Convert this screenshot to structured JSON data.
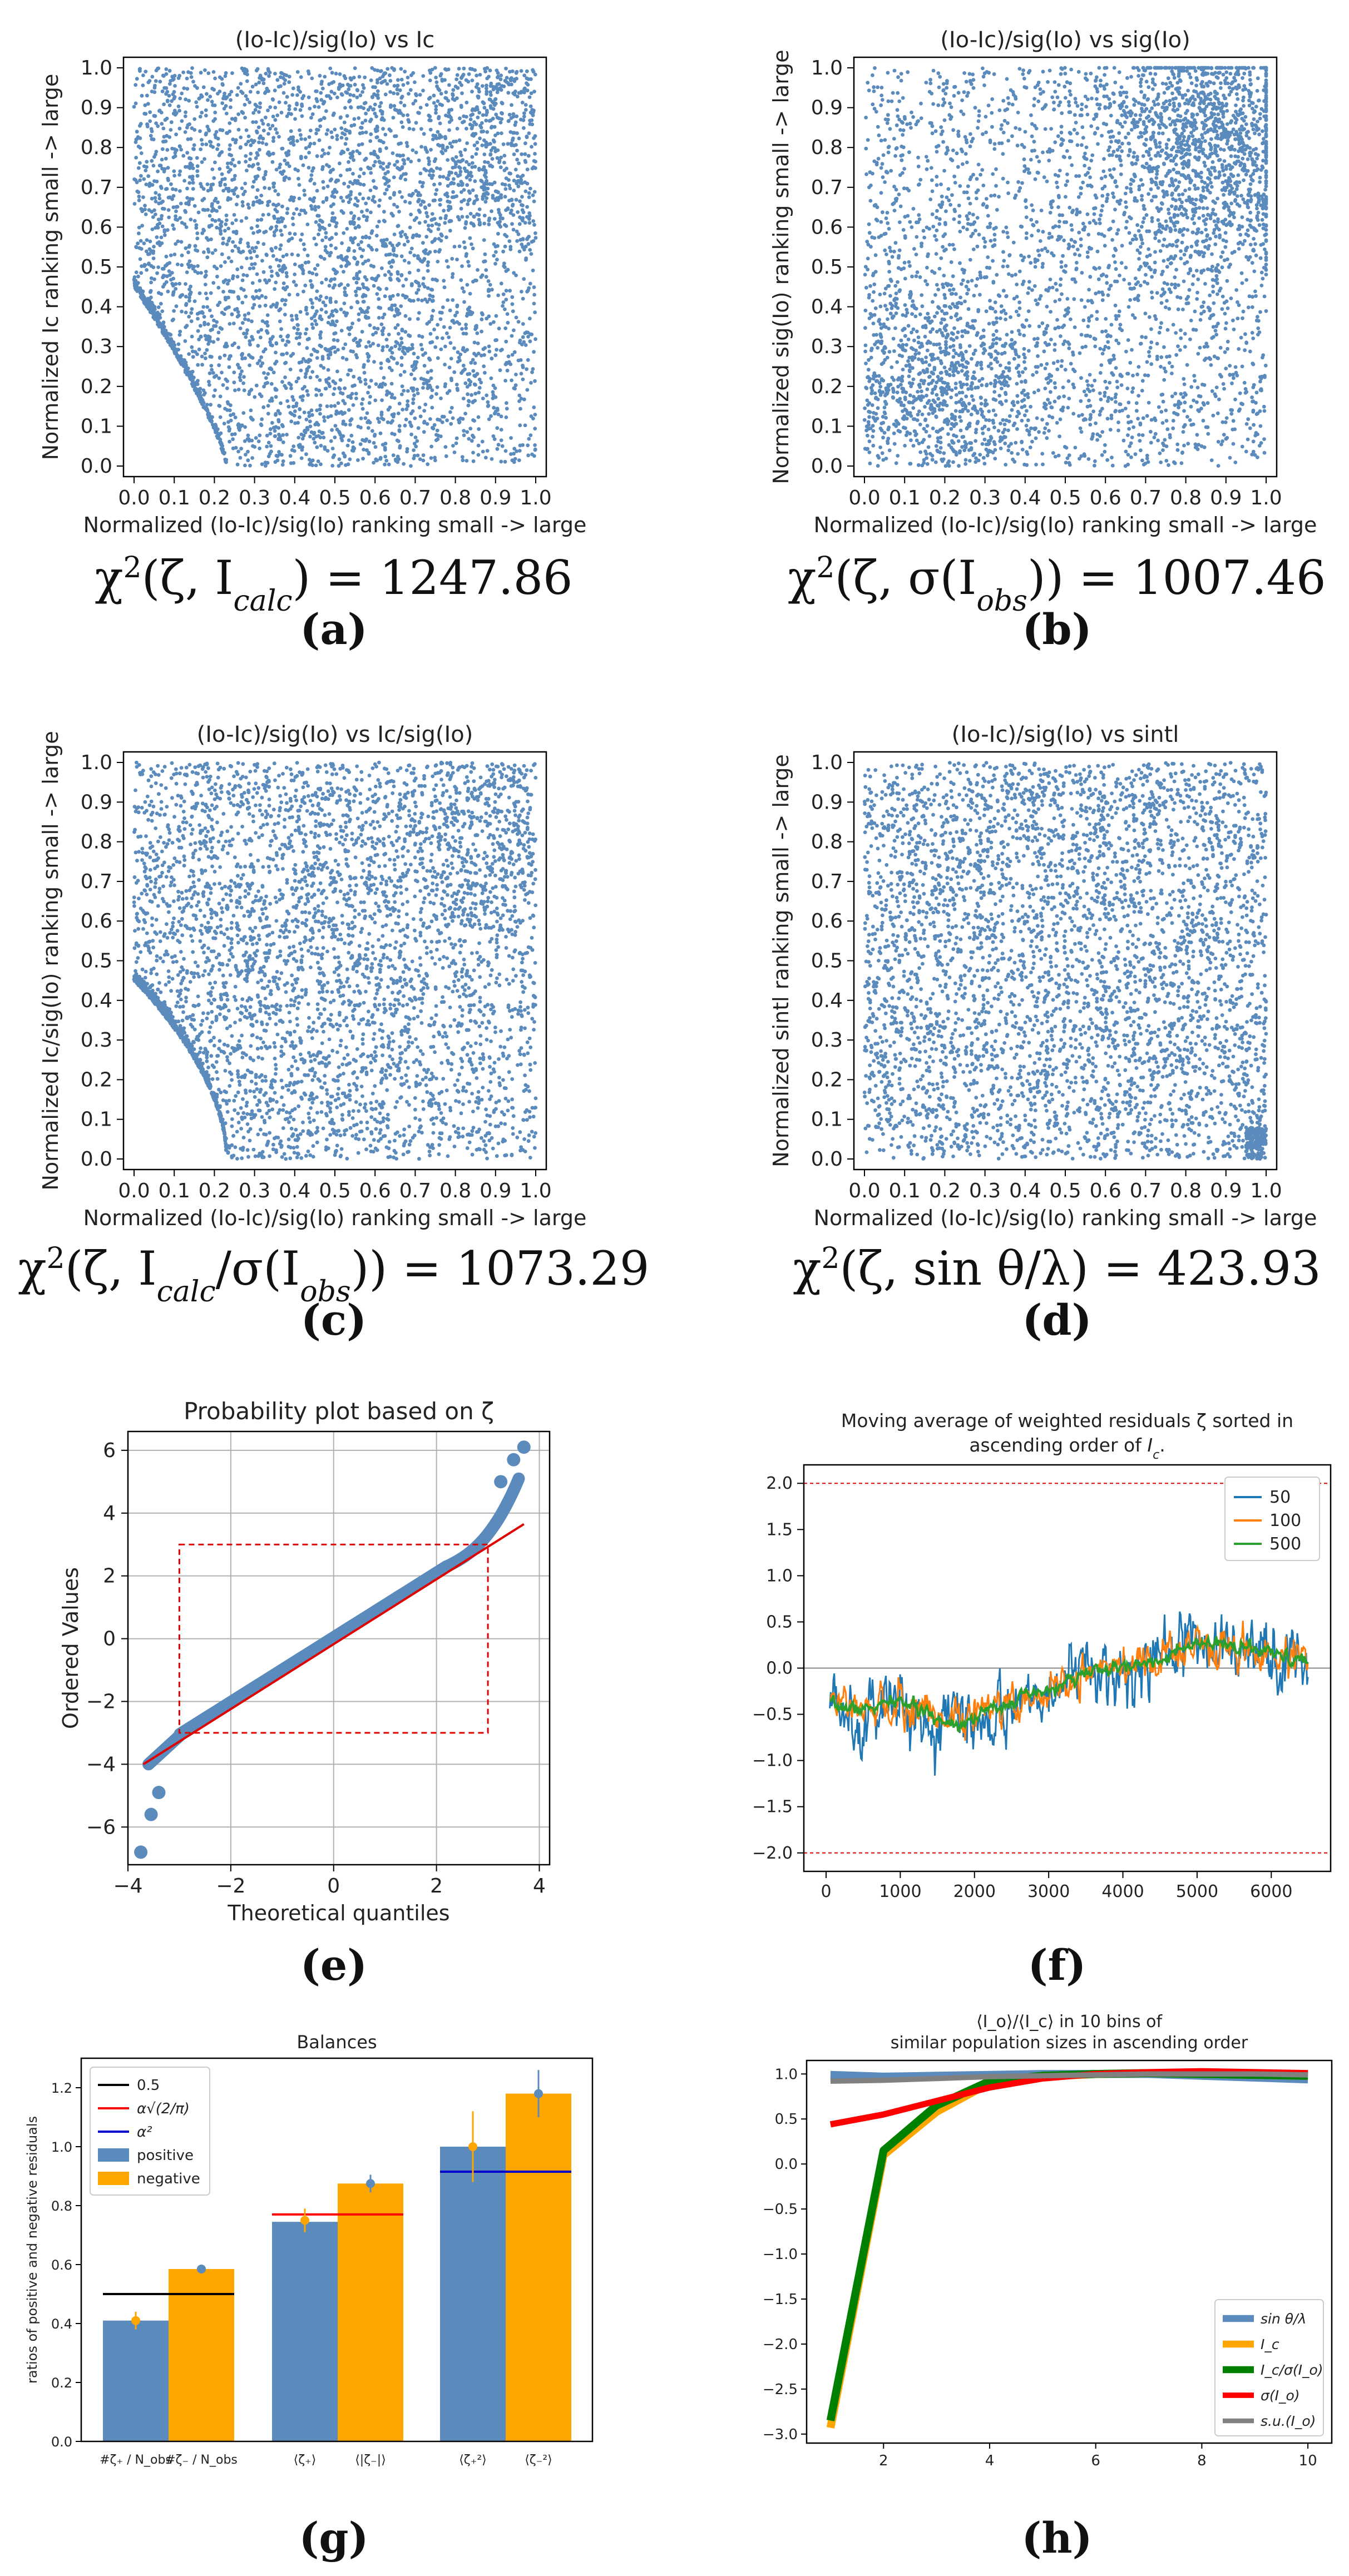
{
  "chart_data": [
    {
      "id": "a",
      "type": "scatter",
      "title": "(Io-Ic)/sig(Io) vs Ic",
      "xlabel": "Normalized (Io-Ic)/sig(Io) ranking small -> large",
      "ylabel": "Normalized Ic ranking small -> large",
      "xlim": [
        0,
        1
      ],
      "ylim": [
        0,
        1
      ],
      "ticks": [
        "0.0",
        "0.1",
        "0.2",
        "0.3",
        "0.4",
        "0.5",
        "0.6",
        "0.7",
        "0.8",
        "0.9",
        "1.0"
      ],
      "caption_formula": "χ²(ζ, I_calc) = 1247.86",
      "formula_parts": {
        "prefix": "χ",
        "sup": "2",
        "body": "(ζ, I",
        "sub": "calc",
        "suffix": ") = 1247.86"
      },
      "label": "(a)",
      "letter": "a"
    },
    {
      "id": "b",
      "type": "scatter",
      "title": "(Io-Ic)/sig(Io) vs sig(Io)",
      "xlabel": "Normalized (Io-Ic)/sig(Io) ranking small -> large",
      "ylabel": "Normalized sig(Io) ranking small -> large",
      "xlim": [
        0,
        1
      ],
      "ylim": [
        0,
        1
      ],
      "ticks": [
        "0.0",
        "0.1",
        "0.2",
        "0.3",
        "0.4",
        "0.5",
        "0.6",
        "0.7",
        "0.8",
        "0.9",
        "1.0"
      ],
      "caption_formula": "χ²(ζ, σ(I_obs)) = 1007.46",
      "formula_parts": {
        "prefix": "χ",
        "sup": "2",
        "body": "(ζ, σ(I",
        "sub": "obs",
        "suffix": ")) = 1007.46"
      },
      "label": "(b)",
      "letter": "b"
    },
    {
      "id": "c",
      "type": "scatter",
      "title": "(Io-Ic)/sig(Io) vs Ic/sig(Io)",
      "xlabel": "Normalized (Io-Ic)/sig(Io) ranking small -> large",
      "ylabel": "Normalized Ic/sig(Io) ranking small -> large",
      "xlim": [
        0,
        1
      ],
      "ylim": [
        0,
        1
      ],
      "ticks": [
        "0.0",
        "0.1",
        "0.2",
        "0.3",
        "0.4",
        "0.5",
        "0.6",
        "0.7",
        "0.8",
        "0.9",
        "1.0"
      ],
      "caption_formula": "χ²(ζ, I_calc/σ(I_obs)) = 1073.29",
      "formula_parts": {
        "prefix": "χ",
        "sup": "2",
        "body": "(ζ, I",
        "sub": "calc",
        "suffix": "/σ(I",
        "sub2": "obs",
        "suffix2": ")) = 1073.29"
      },
      "label": "(c)",
      "letter": "c"
    },
    {
      "id": "d",
      "type": "scatter",
      "title": "(Io-Ic)/sig(Io) vs sintl",
      "xlabel": "Normalized (Io-Ic)/sig(Io) ranking small -> large",
      "ylabel": "Normalized sintl ranking small -> large",
      "xlim": [
        0,
        1
      ],
      "ylim": [
        0,
        1
      ],
      "ticks": [
        "0.0",
        "0.1",
        "0.2",
        "0.3",
        "0.4",
        "0.5",
        "0.6",
        "0.7",
        "0.8",
        "0.9",
        "1.0"
      ],
      "caption_formula": "χ²(ζ, sin θ/λ) = 423.93",
      "formula_parts": {
        "prefix": "χ",
        "sup": "2",
        "body": "(ζ, sin θ/λ) = 423.93"
      },
      "label": "(d)",
      "letter": "d"
    },
    {
      "id": "e",
      "type": "scatter",
      "title": "Probability plot based on ζ",
      "xlabel": "Theoretical quantiles",
      "ylabel": "Ordered Values",
      "xlim": [
        -4,
        4.2
      ],
      "ylim": [
        -7.2,
        6.6
      ],
      "xticks": [
        -4,
        -2,
        0,
        2,
        4
      ],
      "yticks": [
        -6,
        -4,
        -2,
        0,
        2,
        4,
        6
      ],
      "fit_line": {
        "x": [
          -3.7,
          3.7
        ],
        "y": [
          -4.0,
          3.65
        ]
      },
      "box": {
        "x": [
          -3,
          3
        ],
        "y": [
          -3,
          3
        ]
      },
      "label": "(e)",
      "letter": "e"
    },
    {
      "id": "f",
      "type": "line",
      "title": "Moving average of weighted residuals ζ sorted in ascending order of I_c.",
      "title_lines": [
        "Moving average of weighted residuals ζ sorted in",
        "ascending order of I_c."
      ],
      "xlim": [
        -300,
        6800
      ],
      "ylim": [
        -2.2,
        2.2
      ],
      "xticks": [
        0,
        1000,
        2000,
        3000,
        4000,
        5000,
        6000
      ],
      "yticks": [
        -2.0,
        -1.5,
        -1.0,
        -0.5,
        0.0,
        0.5,
        1.0,
        1.5,
        2.0
      ],
      "hlines": [
        2.0,
        -2.0
      ],
      "anchors": {
        "x": [
          0,
          500,
          1000,
          1500,
          1800,
          2500,
          3000,
          3500,
          4000,
          4500,
          5000,
          5500,
          6000,
          6500
        ],
        "y": [
          -0.4,
          -0.45,
          -0.35,
          -0.55,
          -0.6,
          -0.35,
          -0.25,
          -0.05,
          0.0,
          0.1,
          0.25,
          0.25,
          0.15,
          0.05
        ]
      },
      "series": [
        {
          "name": "50",
          "color": "#1f77b4",
          "window": 50
        },
        {
          "name": "100",
          "color": "#ff7f0e",
          "window": 100
        },
        {
          "name": "500",
          "color": "#2ca02c",
          "window": 500
        }
      ],
      "legend": "top-right",
      "label": "(f)",
      "letter": "f"
    },
    {
      "id": "g",
      "type": "bar",
      "title": "Balances",
      "ylabel": "ratios of positive and negative residuals",
      "ylim": [
        0,
        1.3
      ],
      "yticks": [
        0.0,
        0.2,
        0.4,
        0.6,
        0.8,
        1.0,
        1.2
      ],
      "groups": [
        {
          "labels": [
            "#ζ₊ / N_obs",
            "#ζ₋ / N_obs"
          ],
          "positive": 0.41,
          "negative": 0.585,
          "pos_err": [
            0.41,
            0.03
          ],
          "neg_err": [
            0.585,
            0.0
          ],
          "ref": 0.5,
          "ref_color": "#000000"
        },
        {
          "labels": [
            "⟨ζ₊⟩",
            "⟨|ζ₋|⟩"
          ],
          "positive": 0.745,
          "negative": 0.875,
          "pos_err": [
            0.75,
            0.04
          ],
          "neg_err": [
            0.875,
            0.03
          ],
          "ref": 0.77,
          "ref_color": "#ff0000"
        },
        {
          "labels": [
            "⟨ζ₊²⟩",
            "⟨ζ₋²⟩"
          ],
          "positive": 1.0,
          "negative": 1.18,
          "pos_err": [
            1.0,
            0.12
          ],
          "neg_err": [
            1.18,
            0.08
          ],
          "ref": 0.915,
          "ref_color": "#0000cc"
        }
      ],
      "legend": {
        "position": "top-left",
        "entries": [
          {
            "name": "0.5",
            "kind": "line",
            "color": "#000000"
          },
          {
            "name": "α√(2/π)",
            "kind": "line",
            "color": "#ff0000"
          },
          {
            "name": "α²",
            "kind": "line",
            "color": "#0000cc"
          },
          {
            "name": "positive",
            "kind": "bar",
            "color": "#5b8bbd"
          },
          {
            "name": "negative",
            "kind": "bar",
            "color": "#ffa500"
          }
        ]
      },
      "label": "(g)",
      "letter": "g"
    },
    {
      "id": "h",
      "type": "line",
      "title": "⟨I_o⟩/⟨I_c⟩ in 10 bins of similar population sizes in ascending order",
      "title_lines": [
        "⟨I_o⟩/⟨I_c⟩ in 10 bins of",
        "similar population sizes in ascending order"
      ],
      "x": [
        1,
        2,
        3,
        4,
        5,
        6,
        7,
        8,
        9,
        10
      ],
      "xlim": [
        0.55,
        10.45
      ],
      "ylim": [
        -3.1,
        1.15
      ],
      "xticks": [
        2,
        4,
        6,
        8,
        10
      ],
      "yticks": [
        -3.0,
        -2.5,
        -2.0,
        -1.5,
        -1.0,
        -0.5,
        0.0,
        0.5,
        1.0
      ],
      "series": [
        {
          "name": "sin θ/λ",
          "color": "#5b8bbd",
          "width": 9,
          "values": [
            0.99,
            0.97,
            0.98,
            0.99,
            1.0,
            1.0,
            1.0,
            0.98,
            0.96,
            0.94
          ]
        },
        {
          "name": "I_c",
          "color": "#ffa500",
          "width": 9,
          "values": [
            -2.93,
            0.1,
            0.58,
            0.9,
            0.97,
            1.0,
            1.01,
            1.0,
            0.99,
            0.98
          ]
        },
        {
          "name": "I_c/σ(I_o)",
          "color": "#008000",
          "width": 9,
          "values": [
            -2.85,
            0.15,
            0.65,
            0.92,
            0.98,
            1.0,
            1.01,
            1.0,
            0.99,
            0.98
          ]
        },
        {
          "name": "σ(I_o)",
          "color": "#ff0000",
          "width": 7,
          "values": [
            0.44,
            0.55,
            0.7,
            0.85,
            0.95,
            1.0,
            1.02,
            1.03,
            1.02,
            1.01
          ]
        },
        {
          "name": "s.u.(I_o)",
          "color": "#808080",
          "width": 6,
          "values": [
            0.92,
            0.93,
            0.95,
            0.97,
            0.98,
            0.99,
            1.0,
            1.0,
            1.0,
            0.99
          ]
        }
      ],
      "legend": "bottom-right",
      "label": "(h)",
      "letter": "h"
    }
  ]
}
